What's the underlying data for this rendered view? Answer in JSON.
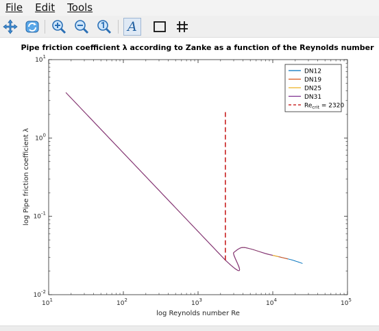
{
  "menu": {
    "file": "File",
    "edit": "Edit",
    "tools": "Tools"
  },
  "toolbar": {
    "buttons": [
      "pan-icon",
      "rotate-icon",
      "zoom-in-icon",
      "zoom-out-icon",
      "zoom-reset-icon",
      "text-insert-icon",
      "axes-box-icon",
      "grid-icon"
    ],
    "text_glyph": "A"
  },
  "chart_data": {
    "type": "line",
    "title": "Pipe friction coefficient λ according to Zanke as a function of the Reynolds number",
    "xlabel": "log Reynolds number Re",
    "ylabel": "log Pipe friction coefficient λ",
    "x_scale": "log",
    "y_scale": "log",
    "xlim": [
      10,
      100000
    ],
    "ylim": [
      0.01,
      10
    ],
    "x_ticks": [
      {
        "base": "10",
        "exp": "1"
      },
      {
        "base": "10",
        "exp": "2"
      },
      {
        "base": "10",
        "exp": "3"
      },
      {
        "base": "10",
        "exp": "4"
      },
      {
        "base": "10",
        "exp": "5"
      }
    ],
    "y_ticks": [
      {
        "base": "10",
        "exp": "-2"
      },
      {
        "base": "10",
        "exp": "-1"
      },
      {
        "base": "10",
        "exp": "0"
      },
      {
        "base": "10",
        "exp": "1"
      }
    ],
    "legend_position": "top-right",
    "grid": false,
    "series": [
      {
        "name": "DN12",
        "color": "#0072bd",
        "x": [
          17,
          2320,
          3000,
          3800,
          5000,
          8000,
          12000,
          18000,
          25000
        ],
        "y": [
          3.8,
          0.0276,
          0.0345,
          0.0398,
          0.0385,
          0.0335,
          0.0305,
          0.0278,
          0.025
        ]
      },
      {
        "name": "DN19",
        "color": "#d95319",
        "x": [
          17,
          2320,
          3000,
          3800,
          5000,
          8000,
          12000,
          16000
        ],
        "y": [
          3.8,
          0.0276,
          0.0345,
          0.0398,
          0.0385,
          0.0335,
          0.0305,
          0.0285
        ]
      },
      {
        "name": "DN25",
        "color": "#edb120",
        "x": [
          17,
          2320,
          3000,
          3800,
          5000,
          8000,
          12000
        ],
        "y": [
          3.8,
          0.0276,
          0.0345,
          0.0398,
          0.0385,
          0.0335,
          0.0305
        ]
      },
      {
        "name": "DN31",
        "color": "#7e2f8e",
        "x": [
          17,
          2320,
          3000,
          3800,
          5000,
          8000,
          10000
        ],
        "y": [
          3.8,
          0.0276,
          0.0345,
          0.0398,
          0.0385,
          0.0335,
          0.0318
        ]
      }
    ],
    "critical_line": {
      "label_main": "Re",
      "label_sub": "crit",
      "label_value": " = 2320",
      "x": 2320,
      "y_range": [
        0.0276,
        2.3
      ],
      "color": "#c00000",
      "style": "dashed"
    }
  }
}
